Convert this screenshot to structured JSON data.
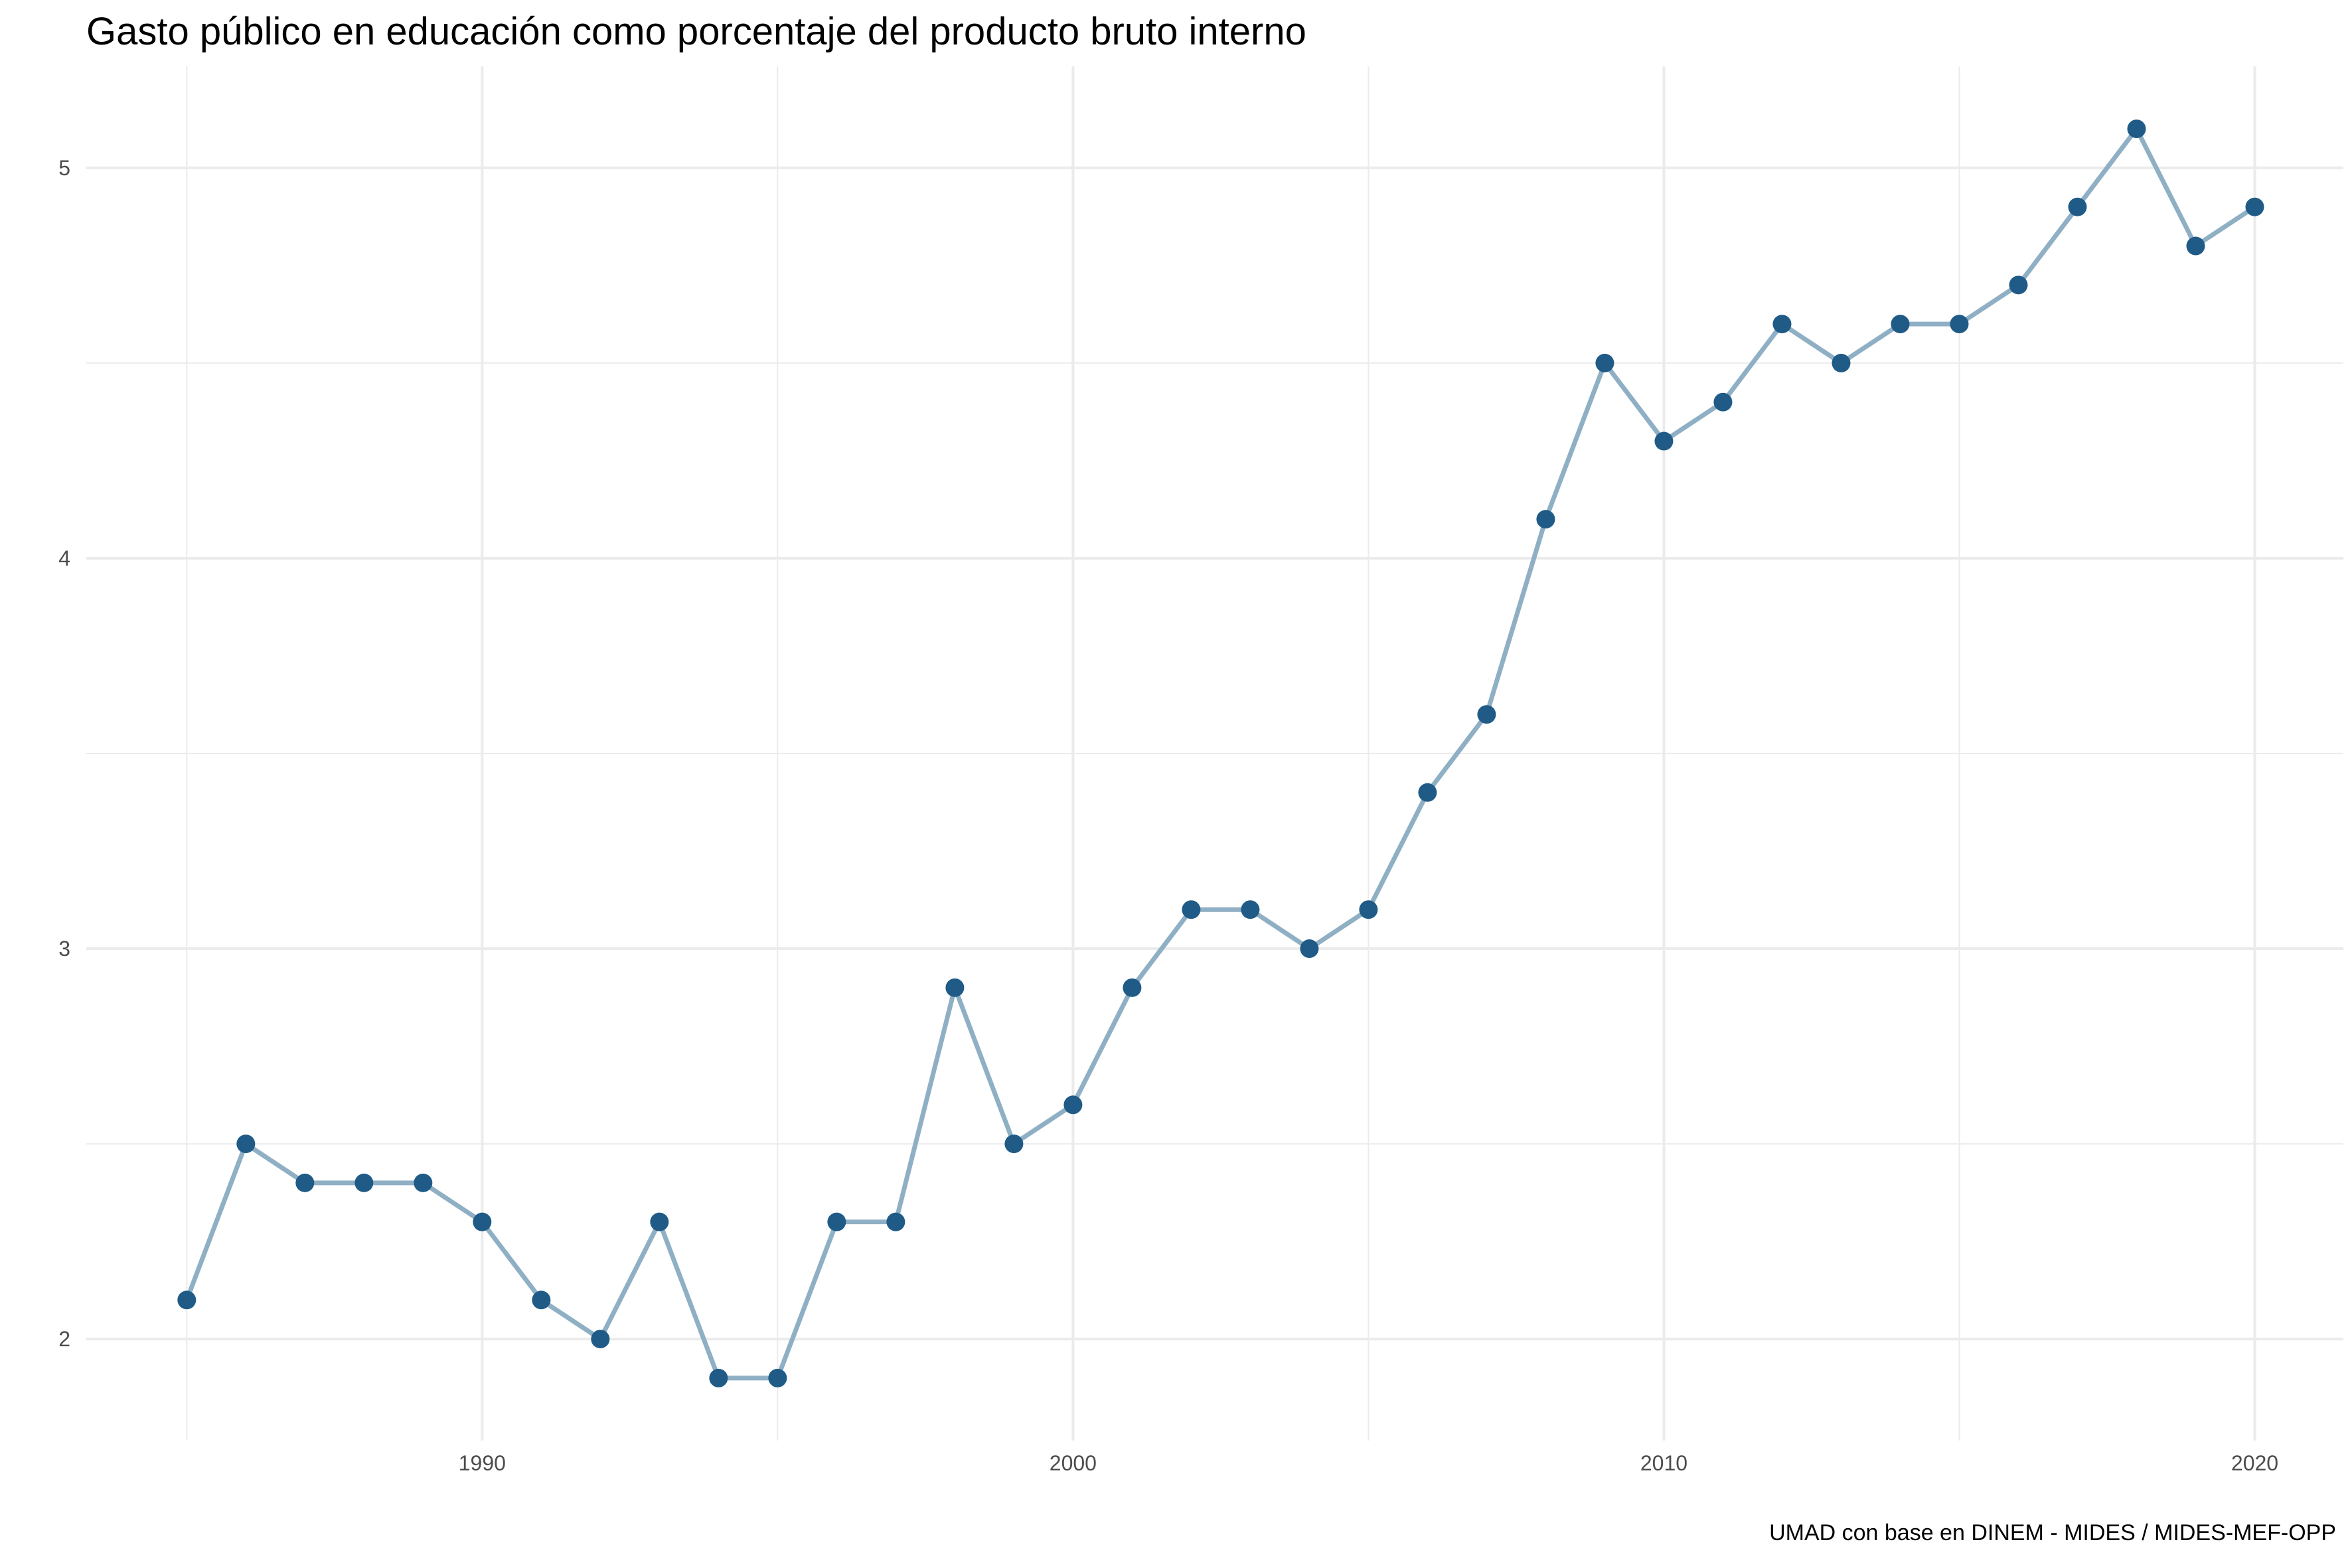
{
  "chart_data": {
    "type": "line",
    "title": "Gasto público en educación como porcentaje del producto bruto interno",
    "caption": "UMAD con base en DINEM - MIDES / MIDES-MEF-OPP",
    "xlabel": "",
    "ylabel": "",
    "xlim": [
      1983.3,
      2021.5
    ],
    "ylim": [
      1.74,
      5.26
    ],
    "x_ticks": [
      1990,
      2000,
      2010,
      2020
    ],
    "y_ticks": [
      2,
      3,
      4,
      5
    ],
    "grid": true,
    "legend": "none",
    "colors": {
      "line": "#8fafc4",
      "point": "#1f5b86",
      "grid": "#ebebeb"
    },
    "series": [
      {
        "x": [
          1985,
          1986,
          1987,
          1988,
          1989,
          1990,
          1991,
          1992,
          1993,
          1994,
          1995,
          1996,
          1997,
          1998,
          1999,
          2000,
          2001,
          2002,
          2003,
          2004,
          2005,
          2006,
          2007,
          2008,
          2009,
          2010,
          2011,
          2012,
          2013,
          2014,
          2015,
          2016,
          2017,
          2018,
          2019,
          2020
        ],
        "values": [
          2.1,
          2.5,
          2.4,
          2.4,
          2.4,
          2.3,
          2.1,
          2.0,
          2.3,
          1.9,
          1.9,
          2.3,
          2.3,
          2.9,
          2.5,
          2.6,
          2.9,
          3.1,
          3.1,
          3.0,
          3.1,
          3.4,
          3.6,
          4.1,
          4.5,
          4.3,
          4.4,
          4.6,
          4.5,
          4.6,
          4.6,
          4.7,
          4.9,
          5.1,
          4.8,
          4.9
        ]
      }
    ]
  }
}
